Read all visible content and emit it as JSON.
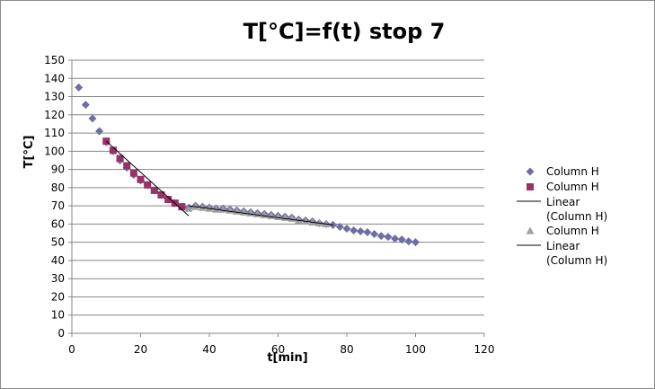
{
  "chart_data": {
    "type": "scatter",
    "title": "T[°C]=f(t) stop 7",
    "xlabel": "t[min]",
    "ylabel": "T[°C]",
    "xlim": [
      0,
      120
    ],
    "ylim": [
      0,
      150
    ],
    "x_ticks": [
      0,
      20,
      40,
      60,
      80,
      100,
      120
    ],
    "y_ticks": [
      0,
      10,
      20,
      30,
      40,
      50,
      60,
      70,
      80,
      90,
      100,
      110,
      120,
      130,
      140,
      150
    ],
    "grid": "horizontal",
    "legend_position": "right",
    "colors": {
      "series1": "#6e6ea6",
      "series2": "#993366",
      "series3": "#a0a0a0",
      "trend": "#000000"
    },
    "series": [
      {
        "name": "Column H",
        "marker": "diamond",
        "x": [
          2,
          4,
          6,
          8,
          10,
          12,
          14,
          16,
          18,
          20,
          22,
          24,
          26,
          28,
          30,
          32,
          34,
          36,
          38,
          40,
          42,
          44,
          46,
          48,
          50,
          52,
          54,
          56,
          58,
          60,
          62,
          64,
          66,
          68,
          70,
          72,
          74,
          76,
          78,
          80,
          82,
          84,
          86,
          88,
          90,
          92,
          94,
          96,
          98,
          100
        ],
        "y": [
          135,
          125.5,
          118,
          111,
          105,
          100,
          95,
          91,
          87,
          84,
          81.5,
          78.5,
          76,
          73.5,
          71.5,
          69.5,
          69,
          70,
          69.5,
          69,
          68.5,
          68.5,
          68,
          67.5,
          67,
          66.5,
          66,
          65.5,
          65,
          64.5,
          64,
          63.5,
          62.5,
          62,
          61.5,
          60.5,
          60,
          59.5,
          58.5,
          57.5,
          56.5,
          56,
          55.5,
          54.5,
          53.5,
          53,
          52,
          51.5,
          50.5,
          50
        ]
      },
      {
        "name": "Column H",
        "marker": "square",
        "x": [
          10,
          12,
          14,
          16,
          18,
          20,
          22,
          24,
          26,
          28,
          30,
          32
        ],
        "y": [
          105.5,
          100.5,
          96,
          92,
          88,
          84.5,
          81.5,
          78.5,
          76,
          73.5,
          71.5,
          69.5
        ]
      },
      {
        "name": "Linear (Column H)",
        "type": "trendline",
        "x": [
          10,
          34
        ],
        "y": [
          105.5,
          64.5
        ]
      },
      {
        "name": "Column H",
        "marker": "triangle",
        "x": [
          34,
          36,
          38,
          40,
          42,
          44,
          46,
          48,
          50,
          52,
          54,
          56,
          58,
          60,
          62,
          64,
          66,
          68,
          70,
          72,
          74
        ],
        "y": [
          68.5,
          69.5,
          69,
          68.5,
          68,
          68,
          67.5,
          67,
          66.5,
          66,
          65.5,
          65,
          64.5,
          64,
          63.5,
          63,
          62,
          61.5,
          61,
          60.5,
          60
        ]
      },
      {
        "name": "Linear (Column H)",
        "type": "trendline",
        "x": [
          34,
          76
        ],
        "y": [
          70,
          59.5
        ]
      }
    ],
    "legend": [
      {
        "label": "Column H",
        "symbol": "diamond"
      },
      {
        "label": "Column H",
        "symbol": "square"
      },
      {
        "label_lines": [
          "Linear",
          "(Column H)"
        ],
        "symbol": "line"
      },
      {
        "label": "Column H",
        "symbol": "triangle"
      },
      {
        "label_lines": [
          "Linear",
          "(Column H)"
        ],
        "symbol": "line"
      }
    ]
  }
}
